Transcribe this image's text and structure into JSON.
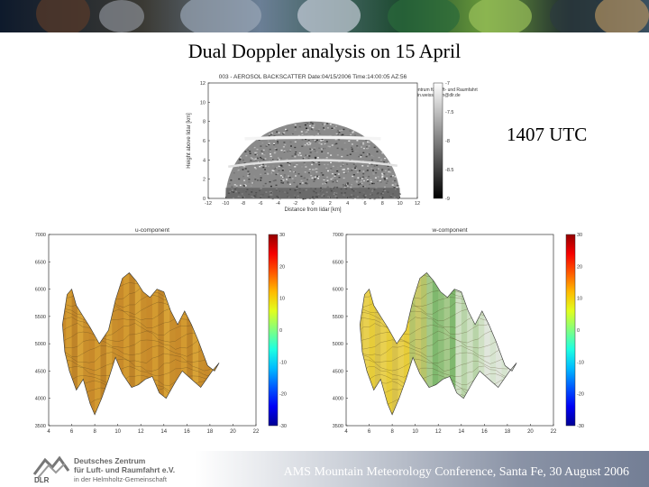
{
  "slide": {
    "title": "Dual Doppler analysis on 15 April",
    "time_label": "1407 UTC",
    "footer": "AMS Mountain Meteorology Conference, Santa Fe, 30 August 2006"
  },
  "logo": {
    "mark": "DLR",
    "line1": "Deutsches Zentrum",
    "line2": "für Luft- und Raumfahrt e.V.",
    "line3": "in der Helmholtz-Gemeinschaft"
  },
  "colors": {
    "background": "#ffffff",
    "footer_text": "#ffffff"
  },
  "chart_data": [
    {
      "type": "heatmap",
      "title": "003 - AEROSOL BACKSCATTER  Date:04/15/2006  Time:14:00:05  AZ:56",
      "credit_line1": "Deutsches Zentrum für Luft- und Raumfahrt",
      "credit_line2": "Contact: martin.weissmann@dlr.de",
      "xlabel": "Distance from lidar [km]",
      "ylabel": "Height above lidar [km]",
      "xlim": [
        -12,
        12
      ],
      "ylim": [
        0,
        12
      ],
      "x_ticks": [
        -12,
        -10,
        -8,
        -6,
        -4,
        -2,
        0,
        2,
        4,
        6,
        8,
        10,
        12
      ],
      "y_ticks": [
        0,
        2,
        4,
        6,
        8,
        10,
        12
      ],
      "colorbar": {
        "range": [
          -9,
          -7
        ],
        "ticks": [
          -7,
          -7.5,
          -8,
          -8.5,
          -9
        ],
        "colormap": "gray"
      }
    },
    {
      "type": "heatmap",
      "title": "u-component",
      "xlim": [
        4,
        22
      ],
      "ylim": [
        3500,
        7000
      ],
      "x_ticks": [
        4,
        6,
        8,
        10,
        12,
        14,
        16,
        18,
        20,
        22
      ],
      "y_ticks": [
        3500,
        4000,
        4500,
        5000,
        5500,
        6000,
        6500,
        7000
      ],
      "colorbar": {
        "range": [
          -30,
          30
        ],
        "ticks": [
          30,
          20,
          10,
          0,
          -10,
          -20,
          -30
        ],
        "colormap": "jet"
      }
    },
    {
      "type": "heatmap",
      "title": "w-component",
      "xlim": [
        4,
        22
      ],
      "ylim": [
        3500,
        7000
      ],
      "x_ticks": [
        4,
        6,
        8,
        10,
        12,
        14,
        16,
        18,
        20,
        22
      ],
      "y_ticks": [
        3500,
        4000,
        4500,
        5000,
        5500,
        6000,
        6500,
        7000
      ],
      "colorbar": {
        "range": [
          -30,
          30
        ],
        "ticks": [
          30,
          20,
          10,
          0,
          -10,
          -20,
          -30
        ],
        "colormap": "jet"
      }
    }
  ]
}
